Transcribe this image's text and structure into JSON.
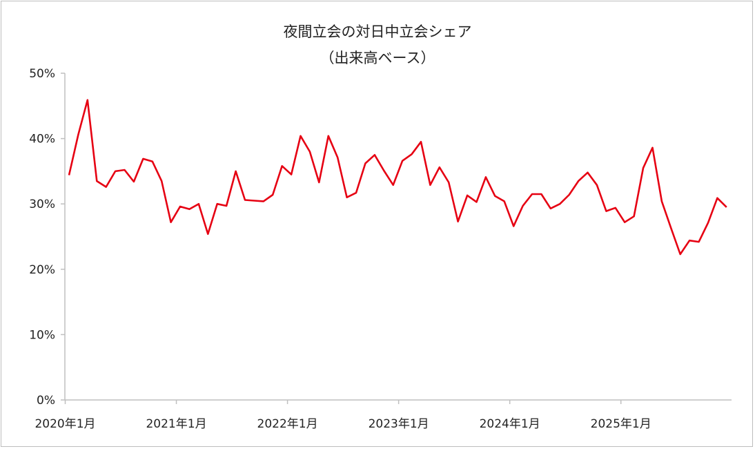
{
  "chart_data": {
    "type": "line",
    "title": "夜間立会の対日中立会シェア",
    "subtitle": "（出来高ベース）",
    "xlabel": "",
    "ylabel": "",
    "ylim": [
      0,
      50
    ],
    "yticks": [
      "0%",
      "10%",
      "20%",
      "30%",
      "40%",
      "50%"
    ],
    "xticks": [
      "2020年1月",
      "2021年1月",
      "2022年1月",
      "2023年1月",
      "2024年1月",
      "2025年1月"
    ],
    "x_start": "2020-01",
    "x_end": "2025-12",
    "grid": false,
    "line_color": "#e60012",
    "values": [
      34.4,
      40.6,
      45.9,
      33.5,
      32.6,
      35.0,
      35.2,
      33.4,
      36.9,
      36.5,
      33.5,
      27.2,
      29.6,
      29.2,
      30.0,
      25.4,
      30.0,
      29.7,
      35.0,
      30.6,
      30.5,
      30.4,
      31.4,
      35.8,
      34.5,
      40.4,
      38.0,
      33.3,
      40.4,
      37.1,
      31.0,
      31.7,
      36.2,
      37.5,
      35.1,
      32.9,
      36.6,
      37.6,
      39.5,
      32.9,
      35.6,
      33.3,
      27.3,
      31.3,
      30.3,
      34.1,
      31.2,
      30.4,
      26.6,
      29.7,
      31.5,
      31.5,
      29.3,
      30.0,
      31.4,
      33.5,
      34.8,
      32.9,
      28.9,
      29.4,
      27.2,
      28.1,
      35.5,
      38.6,
      30.4,
      26.3,
      22.3,
      24.4,
      24.2,
      27.1,
      30.9,
      29.5
    ]
  }
}
